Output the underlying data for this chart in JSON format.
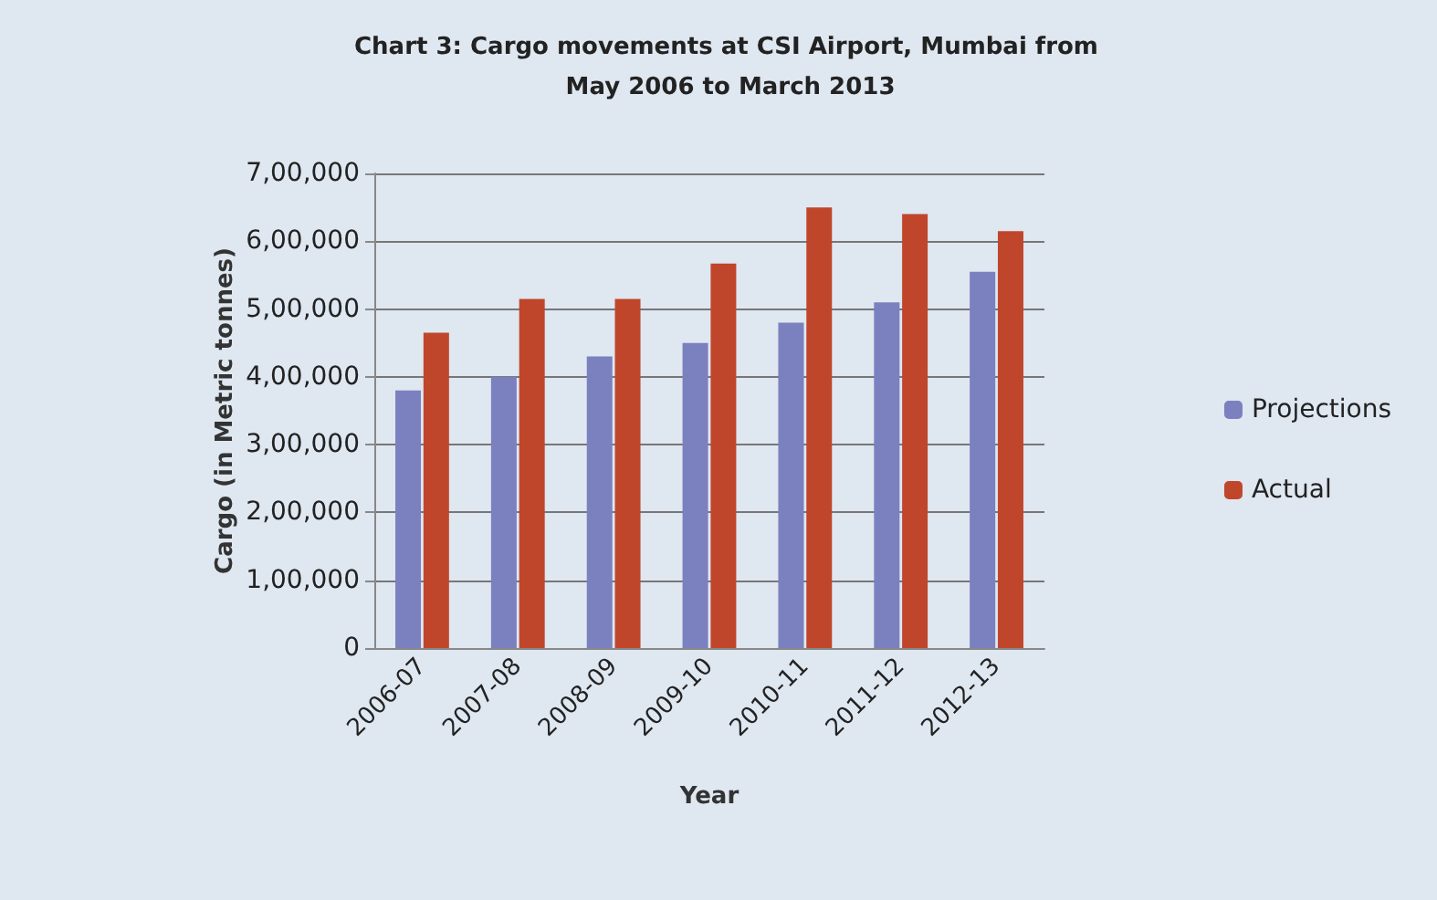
{
  "chart_data": {
    "type": "bar",
    "title": "Chart 3: Cargo movements at CSI Airport, Mumbai from May 2006 to March 2013",
    "xlabel": "Year",
    "ylabel": "Cargo (in Metric tonnes)",
    "categories": [
      "2006-07",
      "2007-08",
      "2008-09",
      "2009-10",
      "2010-11",
      "2011-12",
      "2012-13"
    ],
    "series": [
      {
        "name": "Projections",
        "color": "#7b80bf",
        "values": [
          380000,
          400000,
          430000,
          450000,
          480000,
          510000,
          555000
        ]
      },
      {
        "name": "Actual",
        "color": "#c0462b",
        "values": [
          465000,
          515000,
          515000,
          567000,
          650000,
          640000,
          615000
        ]
      }
    ],
    "ylim": [
      0,
      700000
    ],
    "yticks": [
      {
        "value": 0,
        "label": "0"
      },
      {
        "value": 100000,
        "label": "1,00,000"
      },
      {
        "value": 200000,
        "label": "2,00,000"
      },
      {
        "value": 300000,
        "label": "3,00,000"
      },
      {
        "value": 400000,
        "label": "4,00,000"
      },
      {
        "value": 500000,
        "label": "5,00,000"
      },
      {
        "value": 600000,
        "label": "6,00,000"
      },
      {
        "value": 700000,
        "label": "7,00,000"
      }
    ],
    "grid": "y",
    "legend": "right"
  }
}
